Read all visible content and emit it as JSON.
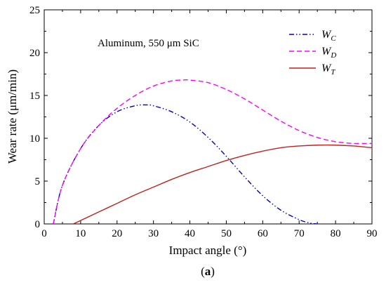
{
  "chart_data": {
    "type": "line",
    "xlabel": "Impact angle (°)",
    "ylabel": "Wear rate (μm/min)",
    "annotation": "Aluminum, 550 μm SiC",
    "caption_prefix": "(",
    "caption_bold": "a",
    "caption_suffix": ")",
    "xlim": [
      0,
      90
    ],
    "ylim": [
      0,
      25
    ],
    "xticks": [
      0,
      10,
      20,
      30,
      40,
      50,
      60,
      70,
      80,
      90
    ],
    "yticks": [
      0,
      5,
      10,
      15,
      20,
      25
    ],
    "legend_placement": "top-right",
    "series": [
      {
        "name": "W",
        "subscript": "C",
        "color": "#0000cc",
        "dash": "dash-dot-dot",
        "x": [
          2.5,
          5,
          10,
          15,
          20,
          25,
          28,
          30,
          35,
          40,
          45,
          50,
          55,
          60,
          65,
          70,
          73,
          75
        ],
        "y": [
          0,
          4.5,
          8.8,
          11.5,
          13.1,
          13.8,
          13.9,
          13.8,
          13.1,
          11.9,
          10.1,
          7.9,
          5.5,
          3.3,
          1.6,
          0.5,
          0.1,
          0
        ]
      },
      {
        "name": "W",
        "subscript": "D",
        "color": "#ff00ff",
        "dash": "dashed",
        "x": [
          2.5,
          5,
          10,
          15,
          20,
          25,
          30,
          35,
          38,
          40,
          45,
          50,
          55,
          60,
          65,
          70,
          75,
          80,
          85,
          90
        ],
        "y": [
          0,
          4.5,
          8.8,
          11.5,
          13.5,
          15.0,
          16.1,
          16.7,
          16.8,
          16.8,
          16.5,
          15.7,
          14.6,
          13.3,
          12.0,
          10.9,
          10.1,
          9.6,
          9.4,
          9.4
        ]
      },
      {
        "name": "W",
        "subscript": "T",
        "color": "#c0221e",
        "dash": "solid",
        "x": [
          8,
          10,
          15,
          20,
          25,
          30,
          35,
          40,
          45,
          50,
          55,
          60,
          65,
          70,
          75,
          80,
          85,
          90
        ],
        "y": [
          0,
          0.4,
          1.4,
          2.4,
          3.4,
          4.3,
          5.2,
          6.0,
          6.7,
          7.4,
          8.0,
          8.5,
          8.9,
          9.1,
          9.2,
          9.2,
          9.1,
          8.9
        ]
      }
    ]
  }
}
